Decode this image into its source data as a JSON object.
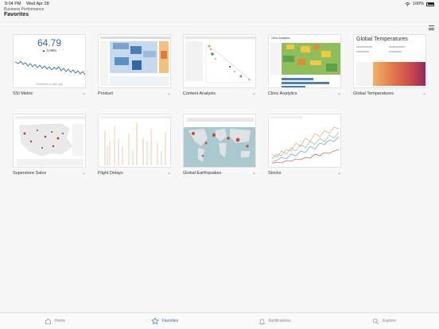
{
  "status": {
    "time": "8:04 PM",
    "date": "Wed Apr 28",
    "battery": "100%"
  },
  "header": {
    "breadcrumb": "Business Performance",
    "title": "Favorites"
  },
  "ssi": {
    "value": "64.79",
    "change": "▲ 0.06%",
    "refreshed": "Refreshed a year ago"
  },
  "cards": [
    {
      "label": "SSI Metric"
    },
    {
      "label": "Product"
    },
    {
      "label": "Content Analysis"
    },
    {
      "label": "Clinic Analytics"
    },
    {
      "label": "Global Temperatures"
    },
    {
      "label": "Superstore Sales"
    },
    {
      "label": "Flight Delays"
    },
    {
      "label": "Global Earthquakes"
    },
    {
      "label": "Stocks"
    }
  ],
  "thumb_text": {
    "clinic_title": "Clinic Analytics",
    "temps_title": "Global Temperatures"
  },
  "tabs": [
    {
      "label": "Home",
      "icon": "home-icon"
    },
    {
      "label": "Favorites",
      "icon": "star-icon"
    },
    {
      "label": "Notifications",
      "icon": "bell-icon"
    },
    {
      "label": "Explore",
      "icon": "search-icon"
    }
  ],
  "colors": {
    "accent": "#2f6fb0",
    "ssi_line": "#2e6aa8",
    "fav": "#4d7fb5"
  }
}
